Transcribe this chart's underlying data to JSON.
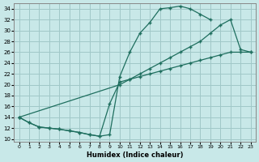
{
  "xlabel": "Humidex (Indice chaleur)",
  "bg_color": "#c8e8e8",
  "grid_color": "#a0c8c8",
  "line_color": "#1e6e5e",
  "xlim": [
    -0.5,
    23.5
  ],
  "ylim": [
    9.5,
    35.0
  ],
  "xticks": [
    0,
    1,
    2,
    3,
    4,
    5,
    6,
    7,
    8,
    9,
    10,
    11,
    12,
    13,
    14,
    15,
    16,
    17,
    18,
    19,
    20,
    21,
    22,
    23
  ],
  "yticks": [
    10,
    12,
    14,
    16,
    18,
    20,
    22,
    24,
    26,
    28,
    30,
    32,
    34
  ],
  "line1_x": [
    0,
    1,
    2,
    3,
    4,
    5,
    6,
    7,
    8,
    9,
    10,
    11,
    12,
    13,
    14,
    15,
    16,
    17,
    18,
    19,
    20,
    21,
    22,
    23
  ],
  "line1_y": [
    14.0,
    13.0,
    12.2,
    12.0,
    11.8,
    11.5,
    11.2,
    10.8,
    10.5,
    10.8,
    21.5,
    26.0,
    29.5,
    31.5,
    34.0,
    34.2,
    34.5,
    34.0,
    33.0,
    32.0,
    null,
    null,
    null,
    null
  ],
  "line2_x": [
    0,
    10,
    11,
    12,
    13,
    14,
    15,
    16,
    17,
    18,
    19,
    20,
    21,
    22,
    23
  ],
  "line2_y": [
    14.0,
    20.0,
    21.0,
    22.0,
    23.0,
    24.0,
    25.0,
    26.0,
    27.0,
    28.0,
    29.5,
    31.0,
    32.0,
    26.5,
    26.0
  ],
  "line3_x": [
    0,
    1,
    2,
    3,
    4,
    5,
    6,
    7,
    8,
    9,
    10,
    11,
    12,
    13,
    14,
    15,
    16,
    17,
    18,
    19,
    20,
    21,
    22,
    23
  ],
  "line3_y": [
    14.0,
    13.0,
    12.2,
    12.0,
    11.8,
    11.5,
    11.2,
    10.8,
    10.5,
    16.5,
    20.5,
    21.0,
    21.5,
    22.0,
    22.5,
    23.0,
    23.5,
    24.0,
    24.5,
    25.0,
    25.5,
    26.0,
    26.0,
    26.0
  ]
}
